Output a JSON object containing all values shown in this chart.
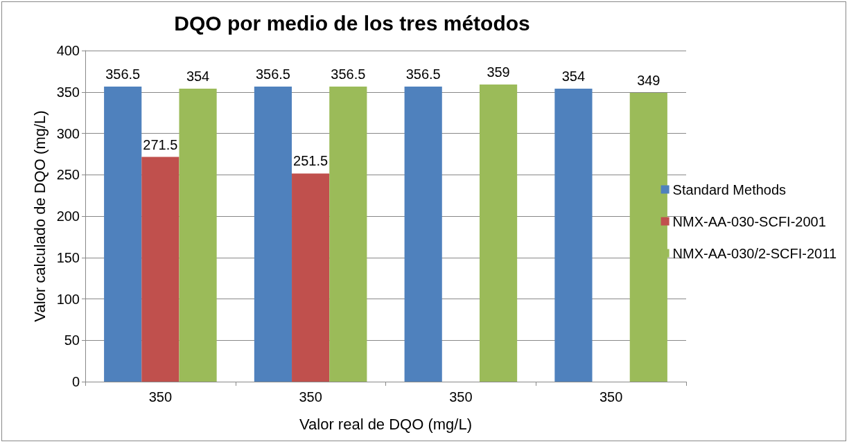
{
  "chart_data": {
    "type": "bar",
    "title": "DQO por medio de los tres métodos",
    "xlabel": "Valor real de DQO (mg/L)",
    "ylabel": "Valor calculado de DQO (mg/L)",
    "categories": [
      "350",
      "350",
      "350",
      "350"
    ],
    "series": [
      {
        "name": "Standard Methods",
        "color": "#4f81bd",
        "values": [
          356.5,
          356.5,
          356.5,
          354
        ]
      },
      {
        "name": "NMX-AA-030-SCFI-2001",
        "color": "#c0504d",
        "values": [
          271.5,
          251.5,
          null,
          null
        ]
      },
      {
        "name": "NMX-AA-030/2-SCFI-2011",
        "color": "#9bbb59",
        "values": [
          354,
          356.5,
          359,
          349
        ]
      }
    ],
    "ylim": [
      0,
      400
    ],
    "yticks": [
      0,
      50,
      100,
      150,
      200,
      250,
      300,
      350,
      400
    ],
    "grid": "y",
    "legend": "right",
    "data_labels": true
  }
}
